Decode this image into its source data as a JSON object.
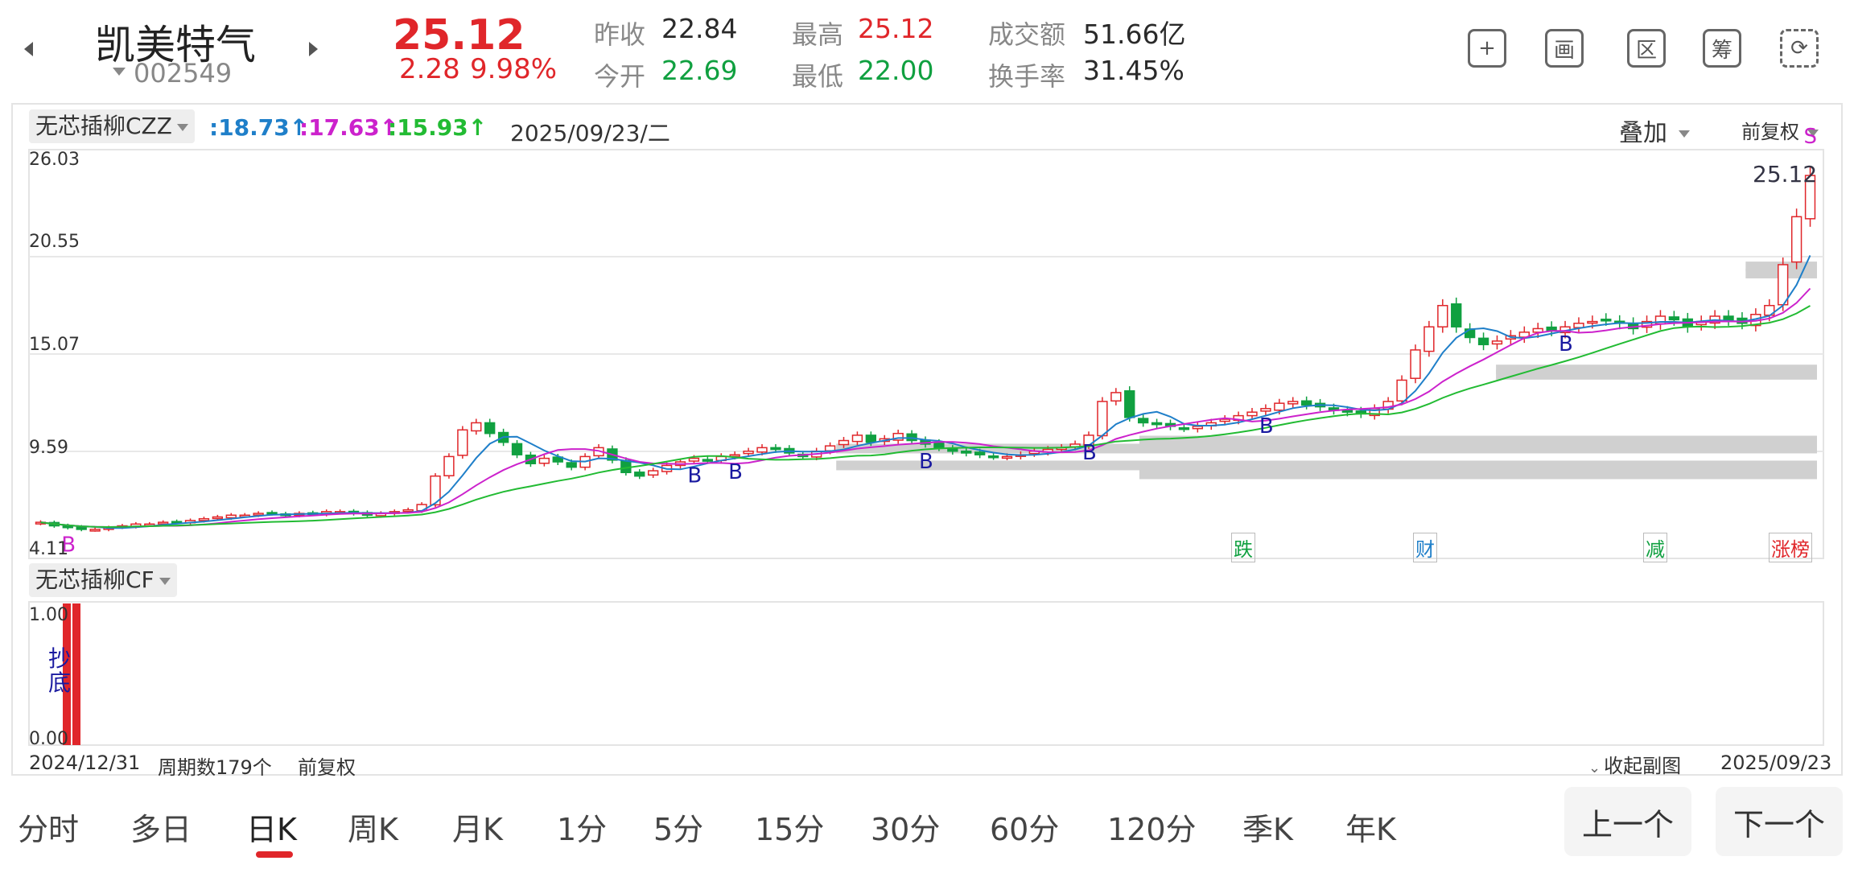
{
  "header": {
    "name": "凯美特气",
    "code": "002549",
    "price": "25.12",
    "change": "2.28",
    "change_pct": "9.98%",
    "quotes": [
      {
        "label": "昨收",
        "value": "22.84",
        "color": "dark"
      },
      {
        "label": "今开",
        "value": "22.69",
        "color": "green"
      },
      {
        "label": "最高",
        "value": "25.12",
        "color": "red"
      },
      {
        "label": "最低",
        "value": "22.00",
        "color": "green"
      },
      {
        "label": "成交额",
        "value": "51.66亿",
        "color": "dark"
      },
      {
        "label": "换手率",
        "value": "31.45%",
        "color": "dark"
      }
    ],
    "tools": [
      {
        "name": "plus-square-icon",
        "glyph": "+"
      },
      {
        "name": "picture-frame-icon",
        "glyph": "画"
      },
      {
        "name": "range-select-icon",
        "glyph": "区"
      },
      {
        "name": "chip-distribution-icon",
        "glyph": "筹"
      },
      {
        "name": "rotate-screen-icon",
        "glyph": "⟳"
      }
    ]
  },
  "main_chart": {
    "indicator": "无芯插柳CZZ",
    "ma_values": [
      {
        "text": ":18.73↑",
        "color": "#1f7fc9"
      },
      {
        "text": ":17.63↑",
        "color": "#cc22cc"
      },
      {
        "text": ":15.93↑",
        "color": "#22bb33"
      }
    ],
    "date": "2025/09/23/二",
    "overlay_label": "叠加",
    "adjust_label": "前复权",
    "price_label": "25.12",
    "y_ticks": [
      "26.03",
      "20.55",
      "15.07",
      "9.59",
      "4.11"
    ],
    "events": [
      {
        "text": "跌",
        "color": "#10a040"
      },
      {
        "text": "财",
        "color": "#1f7fc9"
      },
      {
        "text": "减",
        "color": "#10a040"
      },
      {
        "text": "涨榜",
        "color": "#e0262a"
      }
    ],
    "markers": [
      "B",
      "S"
    ]
  },
  "sub_chart": {
    "indicator": "无芯插柳CF",
    "y_ticks": [
      "1.00",
      "0.00"
    ],
    "signal_text": "抄底",
    "start_date": "2024/12/31",
    "period_count": "周期数179个",
    "adjust": "前复权",
    "collapse_label": "收起副图",
    "end_date": "2025/09/23"
  },
  "chart_data": {
    "type": "candlestick",
    "title": "凯美特气 002549",
    "x_range": [
      "2024/12/31",
      "2025/09/23"
    ],
    "y_range": [
      4.11,
      26.03
    ],
    "y_ticks": [
      26.03,
      20.55,
      15.07,
      9.59,
      4.11
    ],
    "last_close": 25.12,
    "close_series_approx": [
      5.6,
      5.4,
      5.3,
      5.2,
      5.2,
      5.3,
      5.4,
      5.5,
      5.5,
      5.6,
      5.6,
      5.7,
      5.8,
      5.9,
      6.0,
      6.0,
      6.1,
      6.1,
      6.0,
      6.1,
      6.1,
      6.2,
      6.2,
      6.1,
      6.0,
      6.1,
      6.2,
      6.3,
      6.6,
      8.2,
      9.3,
      10.8,
      11.2,
      10.6,
      10.1,
      9.4,
      8.9,
      9.2,
      9.0,
      8.7,
      9.3,
      9.8,
      9.1,
      8.4,
      8.2,
      8.5,
      8.8,
      9.0,
      9.2,
      9.1,
      9.3,
      9.4,
      9.6,
      9.8,
      9.7,
      9.5,
      9.3,
      9.6,
      9.9,
      10.2,
      10.5,
      10.1,
      10.3,
      10.6,
      10.2,
      10.0,
      9.8,
      9.6,
      9.5,
      9.4,
      9.3,
      9.3,
      9.4,
      9.6,
      9.7,
      9.8,
      10.0,
      10.5,
      12.4,
      12.9,
      11.5,
      11.2,
      11.1,
      11.0,
      10.9,
      11.0,
      11.2,
      11.4,
      11.6,
      11.8,
      12.0,
      12.3,
      12.4,
      12.2,
      12.1,
      11.9,
      11.8,
      11.7,
      12.0,
      12.4,
      13.6,
      15.3,
      16.6,
      17.8,
      16.6,
      16.0,
      15.6,
      15.8,
      16.1,
      16.3,
      16.5,
      16.4,
      16.6,
      16.8,
      16.9,
      17.0,
      16.8,
      16.5,
      16.9,
      17.2,
      17.0,
      16.6,
      16.9,
      17.2,
      17.0,
      16.8,
      17.3,
      17.8,
      20.1,
      22.8,
      25.12
    ],
    "moving_averages": [
      {
        "name": "MA1",
        "last": 18.73,
        "color": "#1f7fc9"
      },
      {
        "name": "MA2",
        "last": 17.63,
        "color": "#cc22cc"
      },
      {
        "name": "MA3",
        "last": 15.93,
        "color": "#22bb33"
      }
    ],
    "sub_indicator": {
      "name": "无芯插柳CF",
      "y_range": [
        0,
        1
      ],
      "signal": "抄底"
    }
  },
  "tabs": [
    {
      "label": "分时",
      "active": false
    },
    {
      "label": "多日",
      "active": false
    },
    {
      "label": "日K",
      "active": true
    },
    {
      "label": "周K",
      "active": false
    },
    {
      "label": "月K",
      "active": false
    },
    {
      "label": "1分",
      "active": false
    },
    {
      "label": "5分",
      "active": false
    },
    {
      "label": "15分",
      "active": false
    },
    {
      "label": "30分",
      "active": false
    },
    {
      "label": "60分",
      "active": false
    },
    {
      "label": "120分",
      "active": false
    },
    {
      "label": "季K",
      "active": false
    },
    {
      "label": "年K",
      "active": false
    }
  ],
  "pager": {
    "prev": "上一个",
    "next": "下一个"
  }
}
